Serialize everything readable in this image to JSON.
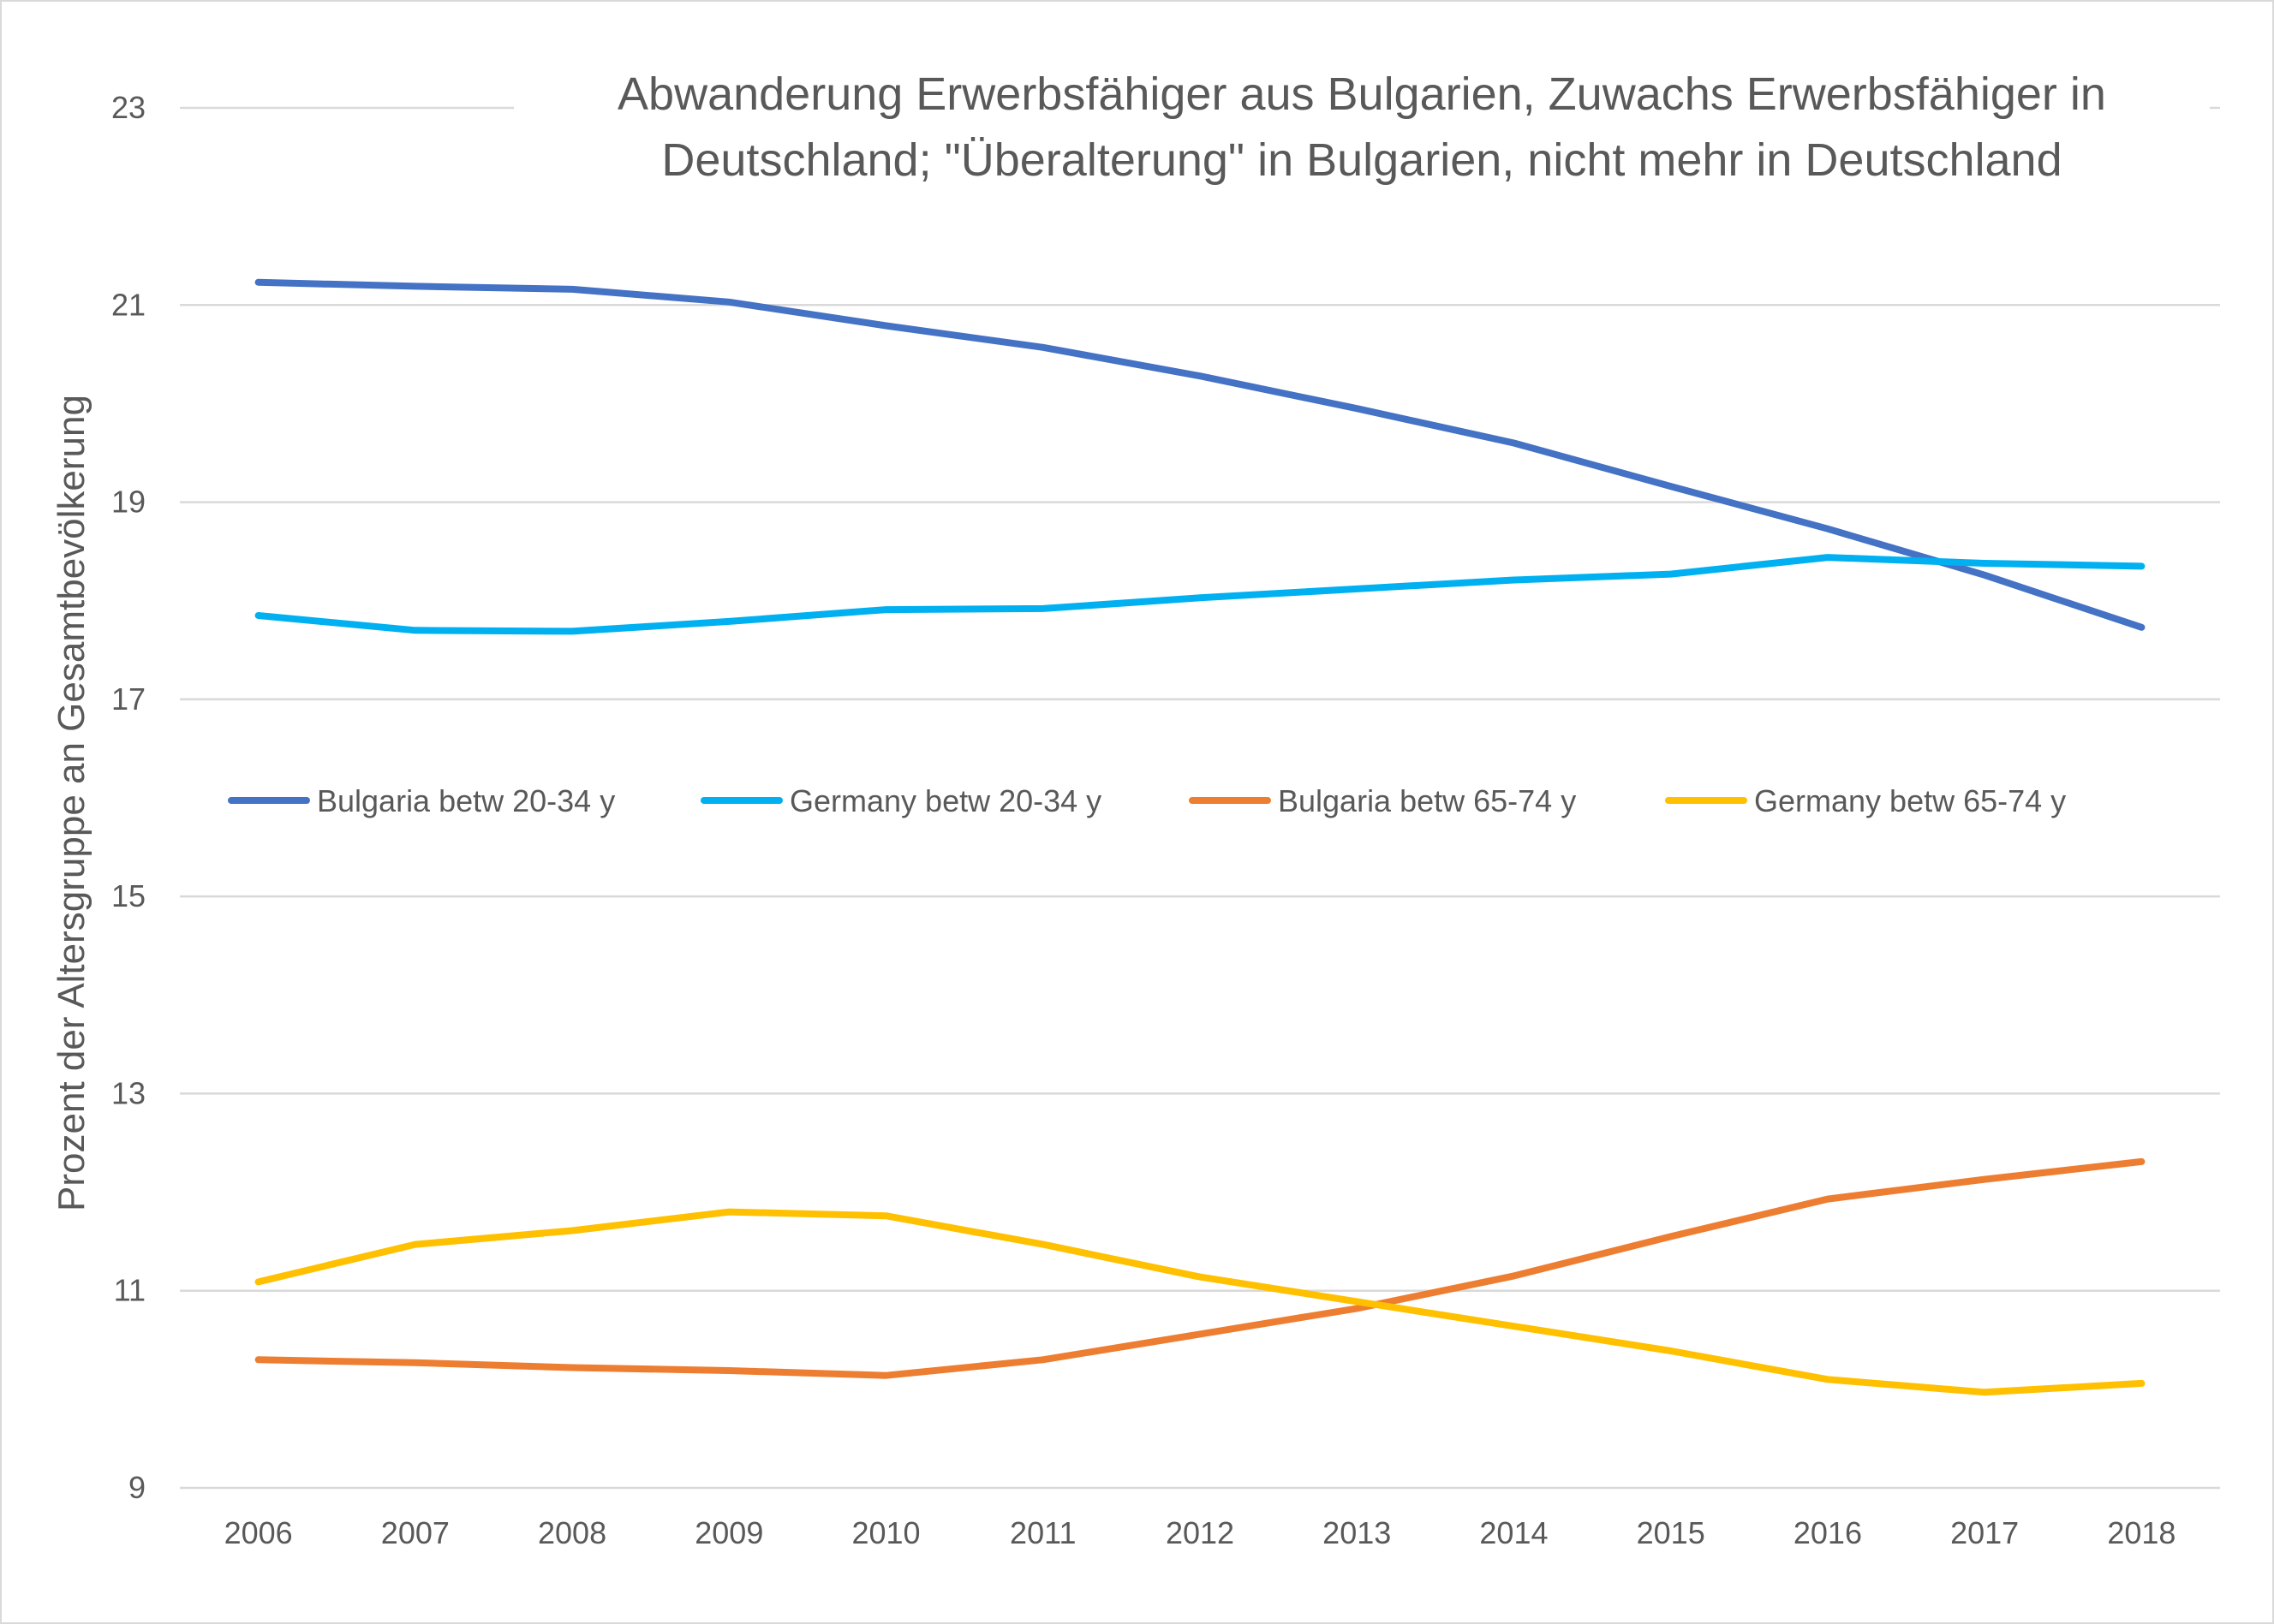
{
  "chart_data": {
    "type": "line",
    "title_line1": "Abwanderung Erwerbsfähiger aus Bulgarien, Zuwachs Erwerbsfähiger in",
    "title_line2": "Deutschland; \"Überalterung\" in Bulgarien, nicht mehr in Deutschland",
    "ylabel": "Prozent der Altersgruppe an Gesamtbevölkerung",
    "xlabel": "",
    "ylim": [
      9,
      23
    ],
    "yticks": [
      9,
      11,
      13,
      15,
      17,
      19,
      21,
      23
    ],
    "categories": [
      "2006",
      "2007",
      "2008",
      "2009",
      "2010",
      "2011",
      "2012",
      "2013",
      "2014",
      "2015",
      "2016",
      "2017",
      "2018"
    ],
    "grid": true,
    "legend_position": "inside-middle",
    "series": [
      {
        "name": "Bulgaria betw 20-34 y",
        "color": "#4472C4",
        "values": [
          21.23,
          21.19,
          21.16,
          21.03,
          20.79,
          20.57,
          20.28,
          19.95,
          19.6,
          19.16,
          18.73,
          18.26,
          17.73
        ]
      },
      {
        "name": "Germany betw 20-34 y",
        "color": "#00B0F0",
        "values": [
          17.85,
          17.7,
          17.69,
          17.79,
          17.91,
          17.92,
          18.03,
          18.12,
          18.21,
          18.27,
          18.44,
          18.38,
          18.35
        ]
      },
      {
        "name": "Bulgaria betw 65-74 y",
        "color": "#ED7D31",
        "values": [
          10.3,
          10.27,
          10.22,
          10.19,
          10.14,
          10.3,
          10.56,
          10.82,
          11.15,
          11.55,
          11.93,
          12.13,
          12.31
        ]
      },
      {
        "name": "Germany betw 65-74 y",
        "color": "#FFC000",
        "values": [
          11.09,
          11.47,
          11.61,
          11.8,
          11.76,
          11.47,
          11.14,
          10.89,
          10.64,
          10.39,
          10.1,
          9.97,
          10.06
        ]
      }
    ]
  }
}
